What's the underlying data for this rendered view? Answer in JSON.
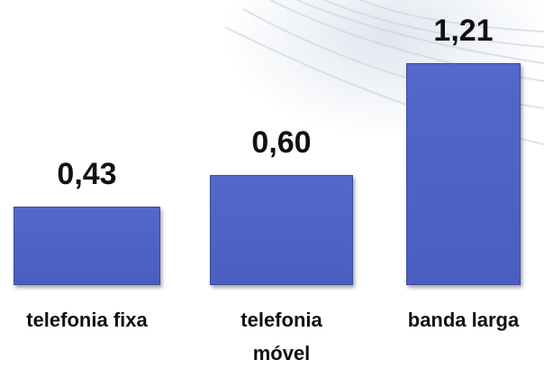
{
  "chart_data": {
    "type": "bar",
    "categories": [
      "telefonia fixa",
      "telefonia móvel",
      "banda larga"
    ],
    "values": [
      0.43,
      0.6,
      1.21
    ],
    "value_labels": [
      "0,43",
      "0,60",
      "1,21"
    ],
    "color": "#4f63c8"
  }
}
